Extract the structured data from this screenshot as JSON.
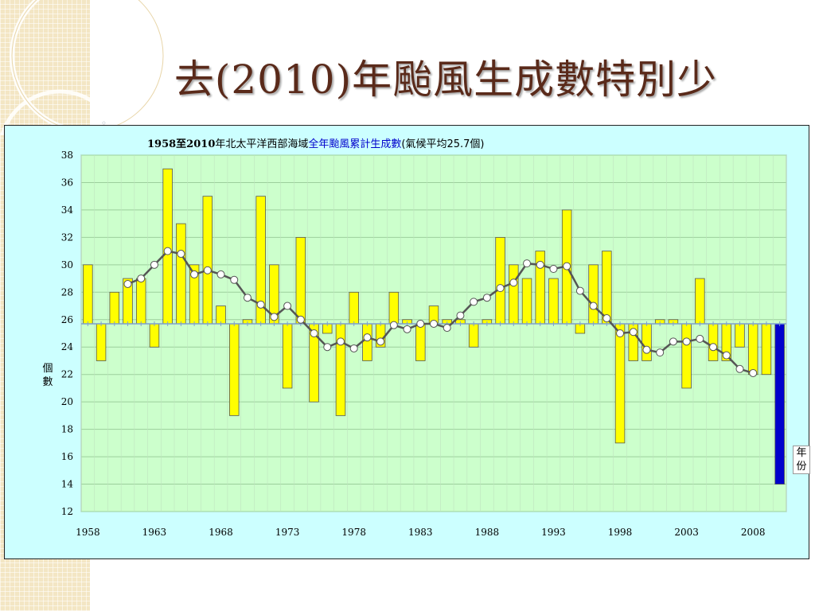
{
  "slide": {
    "title": "去(2010)年颱風生成數特別少",
    "bullet": "◦"
  },
  "colors": {
    "accent_title": "#5a2a1a",
    "chart_bg": "#ccffff",
    "plot_bg": "#ccffcc",
    "bar_fill": "#ffff00",
    "last_bar_fill": "#0000cc",
    "line": "#555555",
    "title_highlight": "#0000cc"
  },
  "chart_data": {
    "type": "bar",
    "title_parts": {
      "years": "1958至2010",
      "region": "年北太平洋西部海域",
      "highlight": "全年颱風累計生成數",
      "note": "(氣候平均25.7個)"
    },
    "ylabel": "個數",
    "xlabel": "年份",
    "baseline": 25.7,
    "ylim": [
      12,
      38
    ],
    "yticks": [
      "12",
      "14",
      "16",
      "18",
      "20",
      "22",
      "24",
      "26",
      "28",
      "30",
      "32",
      "34",
      "36",
      "38"
    ],
    "xtick_labels": [
      "1958",
      "1963",
      "1968",
      "1973",
      "1978",
      "1983",
      "1988",
      "1993",
      "1998",
      "2003",
      "2008"
    ],
    "grid": true,
    "categories": [
      "1958",
      "1959",
      "1960",
      "1961",
      "1962",
      "1963",
      "1964",
      "1965",
      "1966",
      "1967",
      "1968",
      "1969",
      "1970",
      "1971",
      "1972",
      "1973",
      "1974",
      "1975",
      "1976",
      "1977",
      "1978",
      "1979",
      "1980",
      "1981",
      "1982",
      "1983",
      "1984",
      "1985",
      "1986",
      "1987",
      "1988",
      "1989",
      "1990",
      "1991",
      "1992",
      "1993",
      "1994",
      "1995",
      "1996",
      "1997",
      "1998",
      "1999",
      "2000",
      "2001",
      "2002",
      "2003",
      "2004",
      "2005",
      "2006",
      "2007",
      "2008",
      "2009",
      "2010"
    ],
    "series": [
      {
        "type": "bar",
        "values": [
          30,
          23,
          28,
          29,
          29,
          24,
          37,
          33,
          30,
          35,
          27,
          19,
          26,
          35,
          30,
          21,
          32,
          20,
          25,
          19,
          28,
          23,
          24,
          28,
          26,
          23,
          27,
          26,
          26,
          24,
          26,
          32,
          30,
          29,
          31,
          29,
          34,
          25,
          30,
          31,
          17,
          23,
          23,
          26,
          26,
          21,
          29,
          23,
          23,
          24,
          22,
          22,
          14
        ]
      },
      {
        "type": "line",
        "values": [
          null,
          null,
          null,
          28.6,
          29.0,
          30.0,
          31.0,
          30.8,
          29.3,
          29.6,
          29.3,
          28.9,
          27.6,
          27.1,
          26.2,
          27.0,
          26.0,
          25.0,
          24.0,
          24.4,
          23.9,
          24.7,
          24.4,
          25.6,
          25.3,
          25.7,
          25.7,
          25.4,
          26.3,
          27.3,
          27.6,
          28.3,
          28.7,
          30.1,
          30.0,
          29.7,
          29.9,
          28.1,
          27.0,
          26.1,
          25.0,
          25.1,
          23.8,
          23.6,
          24.4,
          24.4,
          24.6,
          24.0,
          23.4,
          22.4,
          22.1,
          null,
          null
        ]
      }
    ]
  }
}
